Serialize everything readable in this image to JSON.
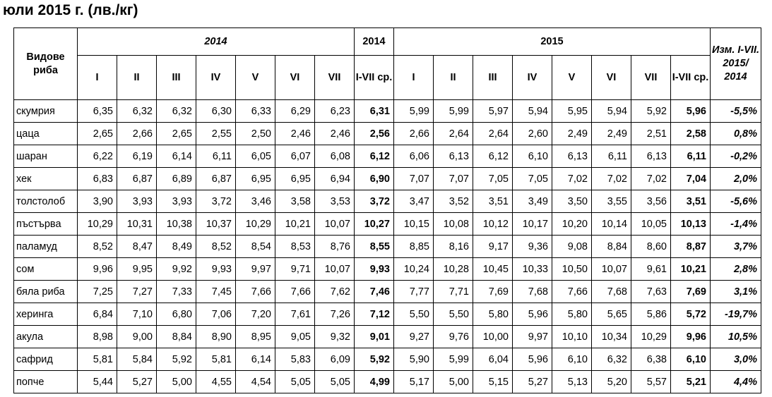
{
  "title": "юли 2015 г. (лв./кг)",
  "header": {
    "fish_col": "Видове риба",
    "year2014": "2014",
    "year2014_avg": "2014",
    "year2015": "2015",
    "change": "Изм. I-VII. 2015/ 2014",
    "months": [
      "I",
      "II",
      "III",
      "IV",
      "V",
      "VI",
      "VII"
    ],
    "avg_label": "I-VII ср."
  },
  "rows": [
    {
      "fish": "скумрия",
      "y2014": [
        "6,35",
        "6,32",
        "6,32",
        "6,30",
        "6,33",
        "6,29",
        "6,23"
      ],
      "avg2014": "6,31",
      "y2015": [
        "5,99",
        "5,99",
        "5,97",
        "5,94",
        "5,95",
        "5,94",
        "5,92"
      ],
      "avg2015": "5,96",
      "change": "-5,5%"
    },
    {
      "fish": "цаца",
      "y2014": [
        "2,65",
        "2,66",
        "2,65",
        "2,55",
        "2,50",
        "2,46",
        "2,46"
      ],
      "avg2014": "2,56",
      "y2015": [
        "2,66",
        "2,64",
        "2,64",
        "2,60",
        "2,49",
        "2,49",
        "2,51"
      ],
      "avg2015": "2,58",
      "change": "0,8%"
    },
    {
      "fish": "шаран",
      "y2014": [
        "6,22",
        "6,19",
        "6,14",
        "6,11",
        "6,05",
        "6,07",
        "6,08"
      ],
      "avg2014": "6,12",
      "y2015": [
        "6,06",
        "6,13",
        "6,12",
        "6,10",
        "6,13",
        "6,11",
        "6,13"
      ],
      "avg2015": "6,11",
      "change": "-0,2%"
    },
    {
      "fish": "хек",
      "y2014": [
        "6,83",
        "6,87",
        "6,89",
        "6,87",
        "6,95",
        "6,95",
        "6,94"
      ],
      "avg2014": "6,90",
      "y2015": [
        "7,07",
        "7,07",
        "7,05",
        "7,05",
        "7,02",
        "7,02",
        "7,02"
      ],
      "avg2015": "7,04",
      "change": "2,0%"
    },
    {
      "fish": "толстолоб",
      "y2014": [
        "3,90",
        "3,93",
        "3,93",
        "3,72",
        "3,46",
        "3,58",
        "3,53"
      ],
      "avg2014": "3,72",
      "y2015": [
        "3,47",
        "3,52",
        "3,51",
        "3,49",
        "3,50",
        "3,55",
        "3,56"
      ],
      "avg2015": "3,51",
      "change": "-5,6%"
    },
    {
      "fish": "пъстърва",
      "y2014": [
        "10,29",
        "10,31",
        "10,38",
        "10,37",
        "10,29",
        "10,21",
        "10,07"
      ],
      "avg2014": "10,27",
      "y2015": [
        "10,15",
        "10,08",
        "10,12",
        "10,17",
        "10,20",
        "10,14",
        "10,05"
      ],
      "avg2015": "10,13",
      "change": "-1,4%"
    },
    {
      "fish": "паламуд",
      "y2014": [
        "8,52",
        "8,47",
        "8,49",
        "8,52",
        "8,54",
        "8,53",
        "8,76"
      ],
      "avg2014": "8,55",
      "y2015": [
        "8,85",
        "8,16",
        "9,17",
        "9,36",
        "9,08",
        "8,84",
        "8,60"
      ],
      "avg2015": "8,87",
      "change": "3,7%"
    },
    {
      "fish": "сом",
      "y2014": [
        "9,96",
        "9,95",
        "9,92",
        "9,93",
        "9,97",
        "9,71",
        "10,07"
      ],
      "avg2014": "9,93",
      "y2015": [
        "10,24",
        "10,28",
        "10,45",
        "10,33",
        "10,50",
        "10,07",
        "9,61"
      ],
      "avg2015": "10,21",
      "change": "2,8%"
    },
    {
      "fish": "бяла риба",
      "y2014": [
        "7,25",
        "7,27",
        "7,33",
        "7,45",
        "7,66",
        "7,66",
        "7,62"
      ],
      "avg2014": "7,46",
      "y2015": [
        "7,77",
        "7,71",
        "7,69",
        "7,68",
        "7,66",
        "7,68",
        "7,63"
      ],
      "avg2015": "7,69",
      "change": "3,1%"
    },
    {
      "fish": "херинга",
      "y2014": [
        "6,84",
        "7,10",
        "6,80",
        "7,06",
        "7,20",
        "7,61",
        "7,26"
      ],
      "avg2014": "7,12",
      "y2015": [
        "5,50",
        "5,50",
        "5,80",
        "5,96",
        "5,80",
        "5,65",
        "5,86"
      ],
      "avg2015": "5,72",
      "change": "-19,7%"
    },
    {
      "fish": "акула",
      "y2014": [
        "8,98",
        "9,00",
        "8,84",
        "8,90",
        "8,95",
        "9,05",
        "9,32"
      ],
      "avg2014": "9,01",
      "y2015": [
        "9,27",
        "9,76",
        "10,00",
        "9,97",
        "10,10",
        "10,34",
        "10,29"
      ],
      "avg2015": "9,96",
      "change": "10,5%"
    },
    {
      "fish": "сафрид",
      "y2014": [
        "5,81",
        "5,84",
        "5,92",
        "5,81",
        "6,14",
        "5,83",
        "6,09"
      ],
      "avg2014": "5,92",
      "y2015": [
        "5,90",
        "5,99",
        "6,04",
        "5,96",
        "6,10",
        "6,32",
        "6,38"
      ],
      "avg2015": "6,10",
      "change": "3,0%"
    },
    {
      "fish": "попче",
      "y2014": [
        "5,44",
        "5,27",
        "5,00",
        "4,55",
        "4,54",
        "5,05",
        "5,05"
      ],
      "avg2014": "4,99",
      "y2015": [
        "5,17",
        "5,00",
        "5,15",
        "5,27",
        "5,13",
        "5,20",
        "5,57"
      ],
      "avg2015": "5,21",
      "change": "4,4%"
    }
  ]
}
